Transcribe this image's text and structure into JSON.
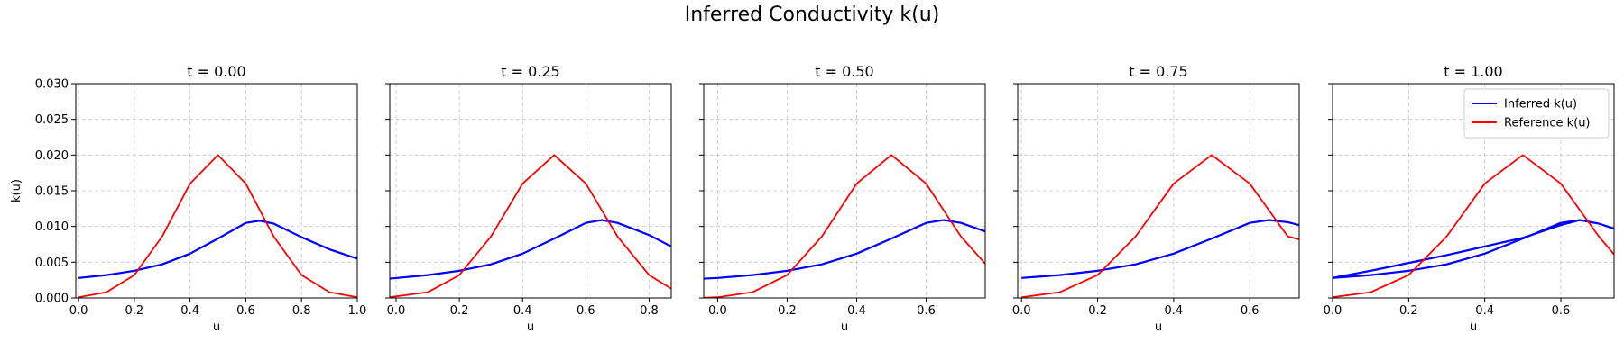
{
  "figure": {
    "title": "Inferred Conductivity k(u)"
  },
  "chart_data": [
    {
      "type": "line",
      "title": "t = 0.00",
      "xlabel": "u",
      "ylabel": "k(u)",
      "xlim": [
        -0.01,
        1.0
      ],
      "ylim": [
        0,
        0.03
      ],
      "xticks": [
        0.0,
        0.2,
        0.4,
        0.6,
        0.8,
        1.0
      ],
      "xtick_labels": [
        "0.0",
        "0.2",
        "0.4",
        "0.6",
        "0.8",
        "1.0"
      ],
      "yticks": [
        0.0,
        0.005,
        0.01,
        0.015,
        0.02,
        0.025,
        0.03
      ],
      "ytick_labels": [
        "0.000",
        "0.005",
        "0.010",
        "0.015",
        "0.020",
        "0.025",
        "0.030"
      ],
      "grid": true,
      "series": [
        {
          "name": "Inferred k(u)",
          "color": "#0000ff",
          "x": [
            0.0,
            0.1,
            0.2,
            0.3,
            0.4,
            0.5,
            0.6,
            0.65,
            0.7,
            0.8,
            0.9,
            1.0
          ],
          "y": [
            0.0028,
            0.0032,
            0.0038,
            0.0047,
            0.0062,
            0.0083,
            0.0105,
            0.0108,
            0.0104,
            0.0085,
            0.0068,
            0.0055
          ]
        },
        {
          "name": "Reference k(u)",
          "color": "#ff0000",
          "x": [
            0.0,
            0.1,
            0.2,
            0.3,
            0.4,
            0.5,
            0.6,
            0.7,
            0.8,
            0.9,
            1.0
          ],
          "y": [
            0.0001,
            0.0008,
            0.0032,
            0.0086,
            0.016,
            0.02,
            0.016,
            0.0086,
            0.0032,
            0.0008,
            0.0001
          ]
        }
      ]
    },
    {
      "type": "line",
      "title": "t = 0.25",
      "xlabel": "u",
      "ylabel": "",
      "xlim": [
        -0.02,
        0.87
      ],
      "ylim": [
        0,
        0.03
      ],
      "xticks": [
        0.0,
        0.2,
        0.4,
        0.6,
        0.8
      ],
      "xtick_labels": [
        "0.0",
        "0.2",
        "0.4",
        "0.6",
        "0.8"
      ],
      "yticks": [
        0.0,
        0.005,
        0.01,
        0.015,
        0.02,
        0.025,
        0.03
      ],
      "ytick_labels": [],
      "grid": true,
      "series": [
        {
          "name": "Inferred k(u)",
          "color": "#0000ff",
          "x": [
            -0.02,
            0.1,
            0.2,
            0.3,
            0.4,
            0.5,
            0.6,
            0.65,
            0.7,
            0.8,
            0.87
          ],
          "y": [
            0.0027,
            0.0032,
            0.0038,
            0.0047,
            0.0062,
            0.0083,
            0.0105,
            0.0109,
            0.0105,
            0.0088,
            0.0072
          ]
        },
        {
          "name": "Reference k(u)",
          "color": "#ff0000",
          "x": [
            -0.02,
            0.1,
            0.2,
            0.3,
            0.4,
            0.5,
            0.6,
            0.7,
            0.8,
            0.87
          ],
          "y": [
            0.0001,
            0.0008,
            0.0032,
            0.0086,
            0.016,
            0.02,
            0.016,
            0.0086,
            0.0032,
            0.0013
          ]
        }
      ]
    },
    {
      "type": "line",
      "title": "t = 0.50",
      "xlabel": "u",
      "ylabel": "",
      "xlim": [
        -0.04,
        0.77
      ],
      "ylim": [
        0,
        0.03
      ],
      "xticks": [
        0.0,
        0.2,
        0.4,
        0.6
      ],
      "xtick_labels": [
        "0.0",
        "0.2",
        "0.4",
        "0.6"
      ],
      "yticks": [
        0.0,
        0.005,
        0.01,
        0.015,
        0.02,
        0.025,
        0.03
      ],
      "ytick_labels": [],
      "grid": true,
      "series": [
        {
          "name": "Inferred k(u)",
          "color": "#0000ff",
          "x": [
            -0.04,
            0.0,
            0.1,
            0.2,
            0.3,
            0.4,
            0.5,
            0.6,
            0.65,
            0.7,
            0.77
          ],
          "y": [
            0.0027,
            0.0028,
            0.0032,
            0.0038,
            0.0047,
            0.0062,
            0.0083,
            0.0105,
            0.0109,
            0.0105,
            0.0093
          ]
        },
        {
          "name": "Reference k(u)",
          "color": "#ff0000",
          "x": [
            -0.04,
            0.0,
            0.1,
            0.2,
            0.3,
            0.4,
            0.5,
            0.6,
            0.7,
            0.77
          ],
          "y": [
            3e-05,
            0.0001,
            0.0008,
            0.0032,
            0.0086,
            0.016,
            0.02,
            0.016,
            0.0086,
            0.0048
          ]
        }
      ]
    },
    {
      "type": "line",
      "title": "t = 0.75",
      "xlabel": "u",
      "ylabel": "",
      "xlim": [
        -0.01,
        0.73
      ],
      "ylim": [
        0,
        0.03
      ],
      "xticks": [
        0.0,
        0.2,
        0.4,
        0.6
      ],
      "xtick_labels": [
        "0.0",
        "0.2",
        "0.4",
        "0.6"
      ],
      "yticks": [
        0.0,
        0.005,
        0.01,
        0.015,
        0.02,
        0.025,
        0.03
      ],
      "ytick_labels": [],
      "grid": true,
      "series": [
        {
          "name": "Inferred k(u)",
          "color": "#0000ff",
          "x": [
            0.0,
            0.1,
            0.2,
            0.3,
            0.4,
            0.5,
            0.6,
            0.65,
            0.7,
            0.73
          ],
          "y": [
            0.0028,
            0.0032,
            0.0038,
            0.0047,
            0.0062,
            0.0083,
            0.0105,
            0.0109,
            0.0106,
            0.0102
          ]
        },
        {
          "name": "Reference k(u)",
          "color": "#ff0000",
          "x": [
            0.0,
            0.1,
            0.2,
            0.3,
            0.4,
            0.5,
            0.6,
            0.7,
            0.73
          ],
          "y": [
            0.0001,
            0.0008,
            0.0032,
            0.0086,
            0.016,
            0.02,
            0.016,
            0.0086,
            0.0082
          ]
        }
      ]
    },
    {
      "type": "line",
      "title": "t = 1.00",
      "xlabel": "u",
      "ylabel": "",
      "xlim": [
        0.0,
        0.74
      ],
      "ylim": [
        0,
        0.03
      ],
      "xticks": [
        0.0,
        0.2,
        0.4,
        0.6
      ],
      "xtick_labels": [
        "0.0",
        "0.2",
        "0.4",
        "0.6"
      ],
      "yticks": [
        0.0,
        0.005,
        0.01,
        0.015,
        0.02,
        0.025,
        0.03
      ],
      "ytick_labels": [],
      "grid": true,
      "legend": "top-right",
      "series": [
        {
          "name": "Inferred k(u)",
          "color": "#0000ff",
          "x": [
            0.0,
            0.1,
            0.2,
            0.3,
            0.4,
            0.5,
            0.6,
            0.65,
            0.7,
            0.74
          ],
          "y": [
            0.0028,
            0.0032,
            0.0038,
            0.0047,
            0.0062,
            0.0083,
            0.0105,
            0.0109,
            0.0104,
            0.0097
          ]
        },
        {
          "name": "",
          "color": "#0000ff",
          "x": [
            0.0,
            0.1,
            0.2,
            0.3,
            0.4,
            0.5,
            0.6,
            0.65
          ],
          "y": [
            0.0028,
            0.0038,
            0.0049,
            0.006,
            0.0072,
            0.0084,
            0.0102,
            0.0109
          ]
        },
        {
          "name": "Reference k(u)",
          "color": "#ff0000",
          "x": [
            0.0,
            0.1,
            0.2,
            0.3,
            0.4,
            0.5,
            0.6,
            0.7,
            0.74
          ],
          "y": [
            0.0001,
            0.0008,
            0.0032,
            0.0086,
            0.016,
            0.02,
            0.016,
            0.0086,
            0.0061
          ]
        }
      ]
    }
  ]
}
